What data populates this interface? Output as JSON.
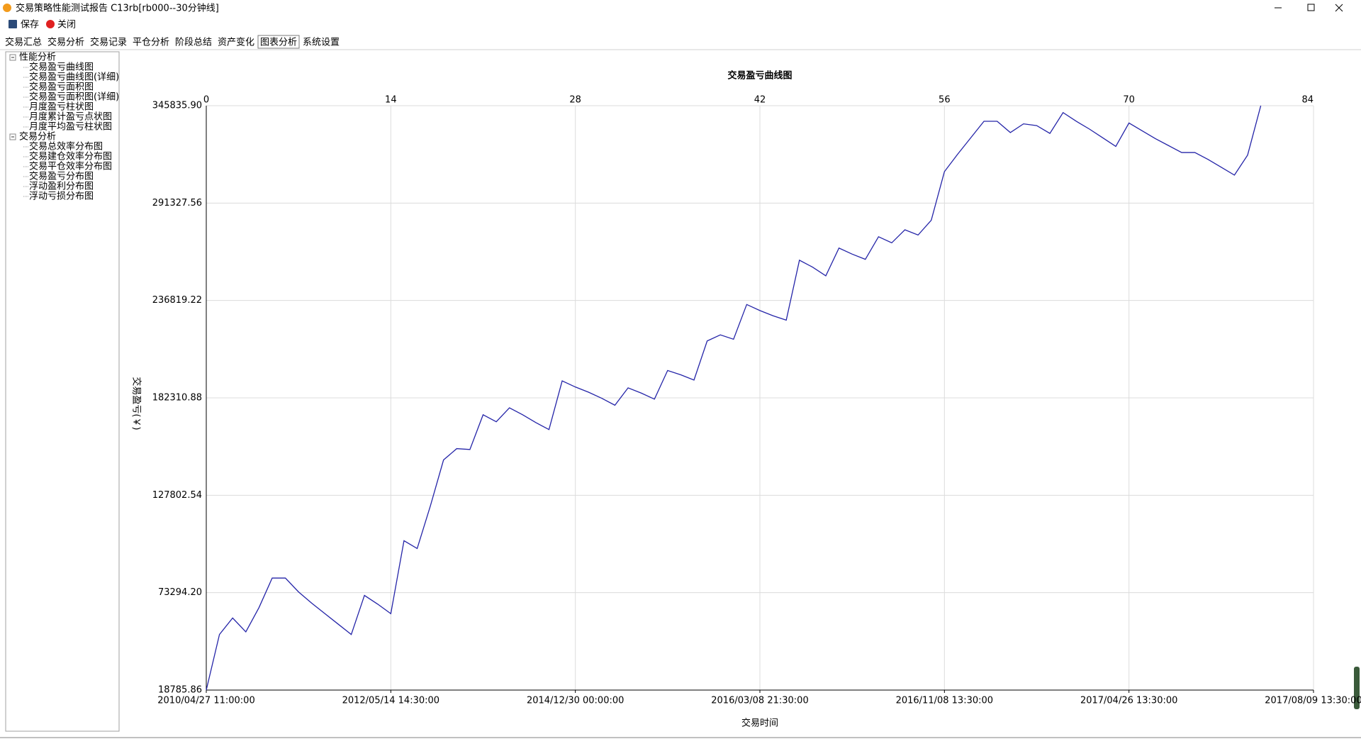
{
  "window": {
    "title": "交易策略性能测试报告 C13rb[rb000--30分钟线]"
  },
  "toolbar": [
    "保存",
    "关闭"
  ],
  "tabs": [
    "交易汇总",
    "交易分析",
    "交易记录",
    "平仓分析",
    "阶段总结",
    "资产变化",
    "图表分析",
    "系统设置"
  ],
  "active_tab": 6,
  "tree": [
    {
      "label": "性能分析",
      "children": [
        "交易盈亏曲线图",
        "交易盈亏曲线图(详细)",
        "交易盈亏面积图",
        "交易盈亏面积图(详细)",
        "月度盈亏柱状图",
        "月度累计盈亏点状图",
        "月度平均盈亏柱状图"
      ]
    },
    {
      "label": "交易分析",
      "children": [
        "交易总效率分布图",
        "交易建仓效率分布图",
        "交易平仓效率分布图",
        "交易盈亏分布图",
        "浮动盈利分布图",
        "浮动亏损分布图"
      ]
    }
  ],
  "chart_data": {
    "type": "line",
    "title": "交易盈亏曲线图",
    "x_label": "交易时间",
    "y_label": "交易盈亏(￥)",
    "color": "#2424a8",
    "grid": true,
    "xlim": [
      0,
      84
    ],
    "ylim": [
      18785.86,
      345835.9
    ],
    "xticks": [
      0,
      14,
      28,
      42,
      56,
      70,
      84
    ],
    "xticks_bottom": [
      {
        "value": 0,
        "label": "2010/04/27 11:00:00"
      },
      {
        "value": 14,
        "label": "2012/05/14 14:30:00"
      },
      {
        "value": 28,
        "label": "2014/12/30 00:00:00"
      },
      {
        "value": 42,
        "label": "2016/03/08 21:30:00"
      },
      {
        "value": 56,
        "label": "2016/11/08 13:30:00"
      },
      {
        "value": 70,
        "label": "2017/04/26 13:30:00"
      },
      {
        "value": 84,
        "label": "2017/08/09 13:30:00"
      }
    ],
    "yticks": [
      18785.86,
      {
        "value": 73294.2,
        "label": "73294.20"
      },
      127802.54,
      182310.88,
      236819.22,
      291327.56,
      {
        "value": 345835.9,
        "label": "345835.90"
      }
    ],
    "x": [
      0,
      1,
      2,
      3,
      4,
      5,
      6,
      7,
      8,
      9,
      10,
      11,
      12,
      13,
      14,
      15,
      16,
      17,
      18,
      19,
      20,
      21,
      22,
      23,
      24,
      25,
      26,
      27,
      28,
      29,
      30,
      31,
      32,
      33,
      34,
      35,
      36,
      37,
      38,
      39,
      40,
      41,
      42,
      43,
      44,
      45,
      46,
      47,
      48,
      49,
      50,
      51,
      52,
      53,
      54,
      55,
      56,
      57,
      58,
      59,
      60,
      61,
      62,
      63,
      64,
      65,
      66,
      67,
      68,
      69,
      70,
      71,
      72,
      73,
      74,
      75,
      76,
      77,
      78,
      79,
      80
    ],
    "values": [
      18785.86,
      49890,
      59124,
      51348,
      64956,
      81480,
      81480,
      73704,
      67386,
      61554,
      55722,
      49890,
      71760,
      66900,
      61554,
      102378,
      98004,
      121818,
      147576,
      153894,
      153408,
      172848,
      168960,
      176736,
      172848,
      168474,
      164586,
      191802,
      188400,
      185484,
      182082,
      178194,
      187914,
      184998,
      181596,
      197634,
      195204,
      192288,
      214158,
      217560,
      215130,
      234570,
      231168,
      228252,
      225822,
      259356,
      255468,
      250608,
      266160,
      262758,
      259842,
      272478,
      269076,
      276366,
      273450,
      281712,
      308928,
      318648,
      327882,
      337116,
      337116,
      330798,
      335658,
      334686,
      330312,
      341976,
      337116,
      332742,
      327882,
      323022,
      336144,
      331770,
      327396,
      323508,
      319620,
      319620,
      315732,
      311358,
      306984,
      318162,
      345835.9
    ]
  }
}
